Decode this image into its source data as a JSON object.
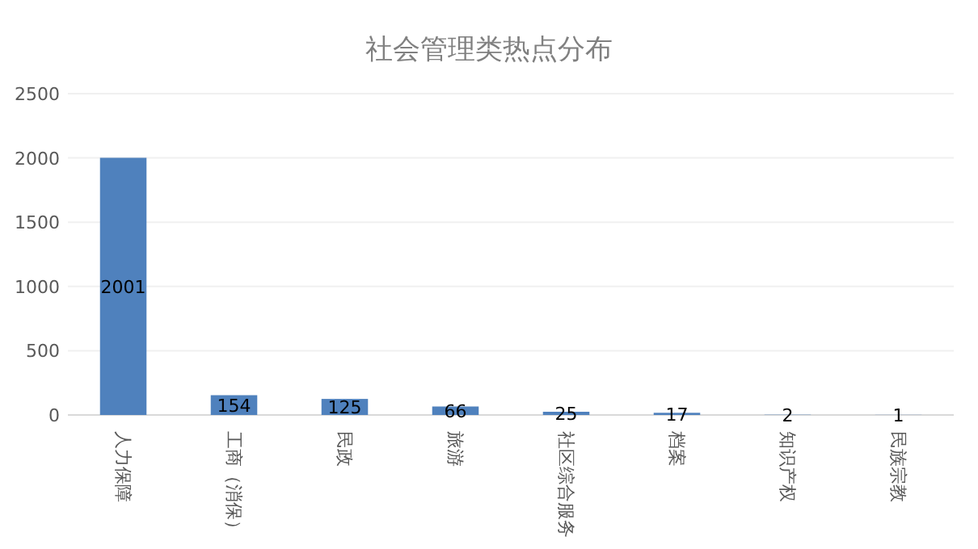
{
  "chart_data": {
    "type": "bar",
    "title": "社会管理类热点分布",
    "categories": [
      "人力保障",
      "工商（消保）",
      "民政",
      "旅游",
      "社区综合服务",
      "档案",
      "知识产权",
      "民族宗教"
    ],
    "values": [
      2001,
      154,
      125,
      66,
      25,
      17,
      2,
      1
    ],
    "color": "#4f81bd",
    "ylim": [
      0,
      2500
    ],
    "yticks": [
      0,
      500,
      1000,
      1500,
      2000,
      2500
    ],
    "grid": "y",
    "data_labels": true
  }
}
